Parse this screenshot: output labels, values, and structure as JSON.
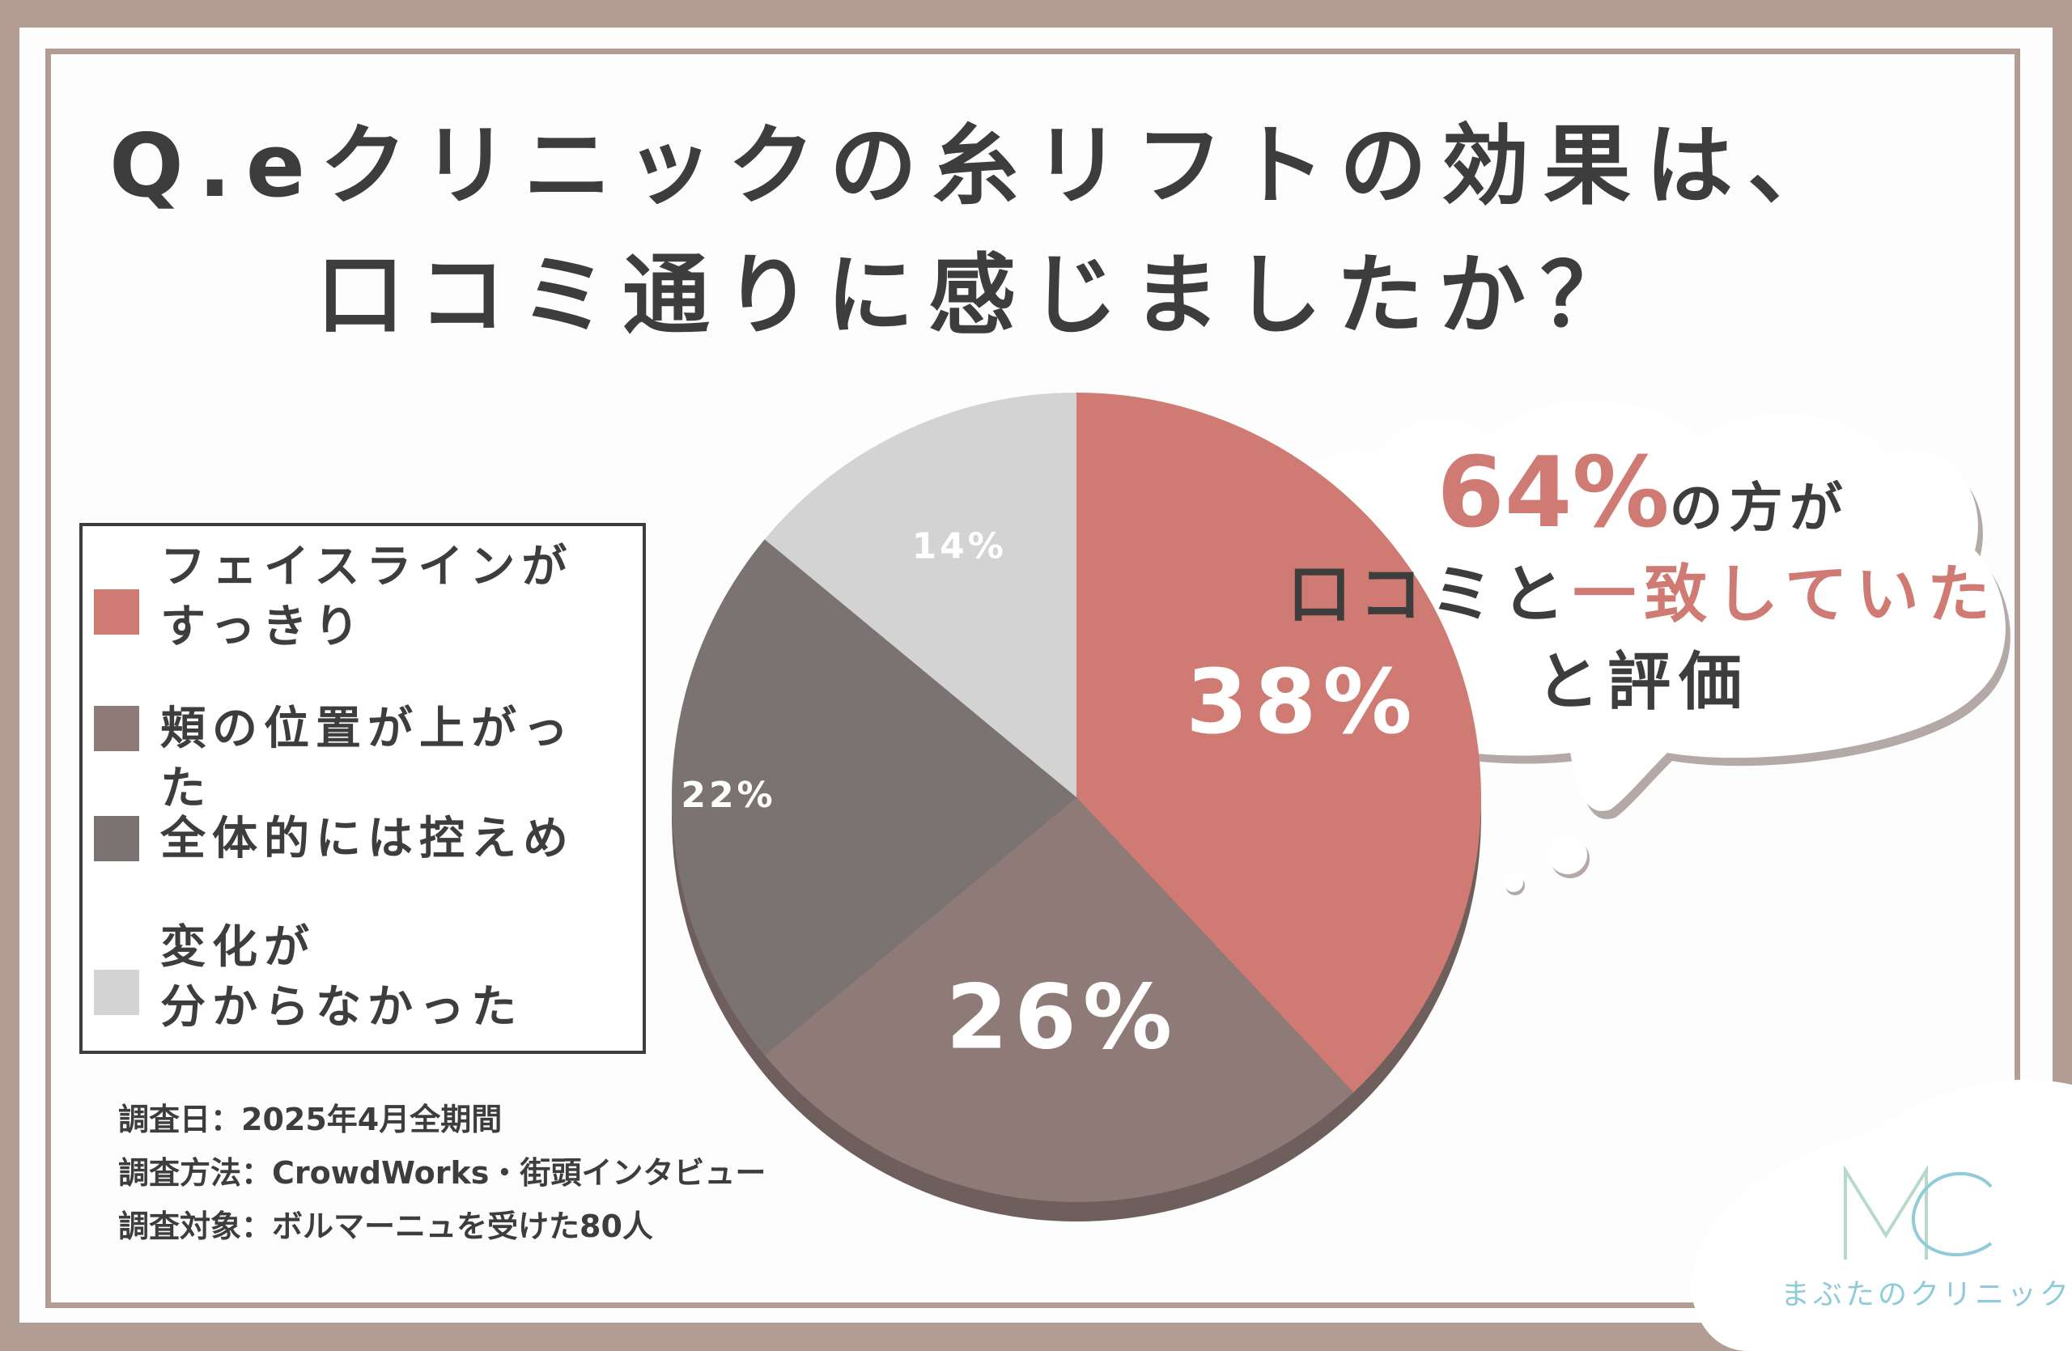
{
  "title": {
    "line1": "Q.eクリニックの糸リフトの効果は、",
    "line2": "口コミ通りに感じましたか？"
  },
  "chart_data": {
    "type": "pie",
    "categories": [
      "フェイスラインがすっきり",
      "頬の位置が上がった",
      "全体的には控えめ",
      "変化が分からなかった"
    ],
    "values": [
      38,
      26,
      22,
      14
    ],
    "value_labels": [
      "38%",
      "26%",
      "22%",
      "14%"
    ],
    "colors": [
      "#cf7a72",
      "#8e7a77",
      "#7a7372",
      "#d3d3d3"
    ],
    "legend_position": "left"
  },
  "legend": {
    "items": [
      {
        "line1": "フェイスラインが",
        "line2": "すっきり"
      },
      {
        "line1": "頬の位置が上がった",
        "line2": ""
      },
      {
        "line1": "全体的には控えめ",
        "line2": ""
      },
      {
        "line1": "変化が",
        "line2": "分からなかった"
      }
    ]
  },
  "bubble": {
    "highlight": "64%",
    "line1_rest": "の方が",
    "line2_plain": "口コミと",
    "line2_accent": "一致していた",
    "line3": "と評価"
  },
  "notes": {
    "survey_date": "調査日：2025年4月全期間",
    "survey_method": "調査方法：CrowdWorks・街頭インタビュー",
    "survey_target": "調査対象：ボルマーニュを受けた80人"
  },
  "logo": {
    "mark": "MC",
    "name": "まぶたのクリニック"
  }
}
